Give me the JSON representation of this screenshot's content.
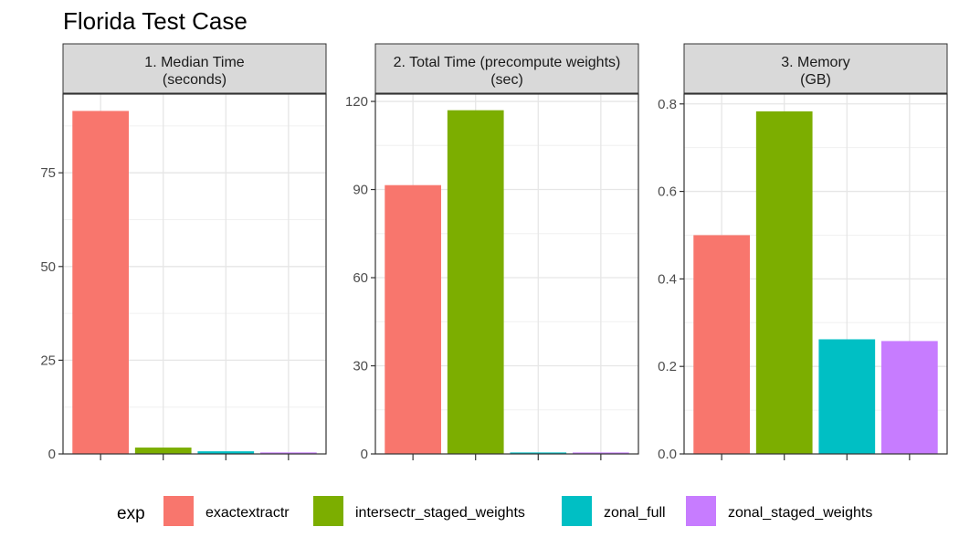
{
  "title": "Florida Test Case",
  "chart_data": {
    "type": "bar",
    "categories": [
      "exactextractr",
      "intersectr_staged_weights",
      "zonal_full",
      "zonal_staged_weights"
    ],
    "colors": [
      "#F8766D",
      "#7CAE00",
      "#00BFC4",
      "#C77CFF"
    ],
    "legend": {
      "title": "exp",
      "position": "bottom",
      "entries": [
        "exactextractr",
        "intersectr_staged_weights",
        "zonal_full",
        "zonal_staged_weights"
      ]
    },
    "grid": true,
    "panels": [
      {
        "strip": [
          "1. Median Time",
          "(seconds)"
        ],
        "values": [
          91.5,
          1.7,
          0.7,
          0.4
        ],
        "ylim": [
          0,
          96
        ],
        "yticks": [
          0,
          25,
          50,
          75
        ],
        "ytick_labels": [
          "0",
          "25",
          "50",
          "75"
        ]
      },
      {
        "strip": [
          "2. Total Time (precompute weights)",
          "(sec)"
        ],
        "values": [
          91.5,
          117,
          0.5,
          0.5
        ],
        "ylim": [
          0,
          122.5
        ],
        "yticks": [
          0,
          30,
          60,
          90,
          120
        ],
        "ytick_labels": [
          "0",
          "30",
          "60",
          "90",
          "120"
        ]
      },
      {
        "strip": [
          "3. Memory",
          "(GB)"
        ],
        "values": [
          0.5,
          0.783,
          0.262,
          0.258
        ],
        "ylim": [
          0,
          0.8225
        ],
        "yticks": [
          0,
          0.2,
          0.4,
          0.6,
          0.8
        ],
        "ytick_labels": [
          "0.0",
          "0.2",
          "0.4",
          "0.6",
          "0.8"
        ]
      }
    ]
  }
}
